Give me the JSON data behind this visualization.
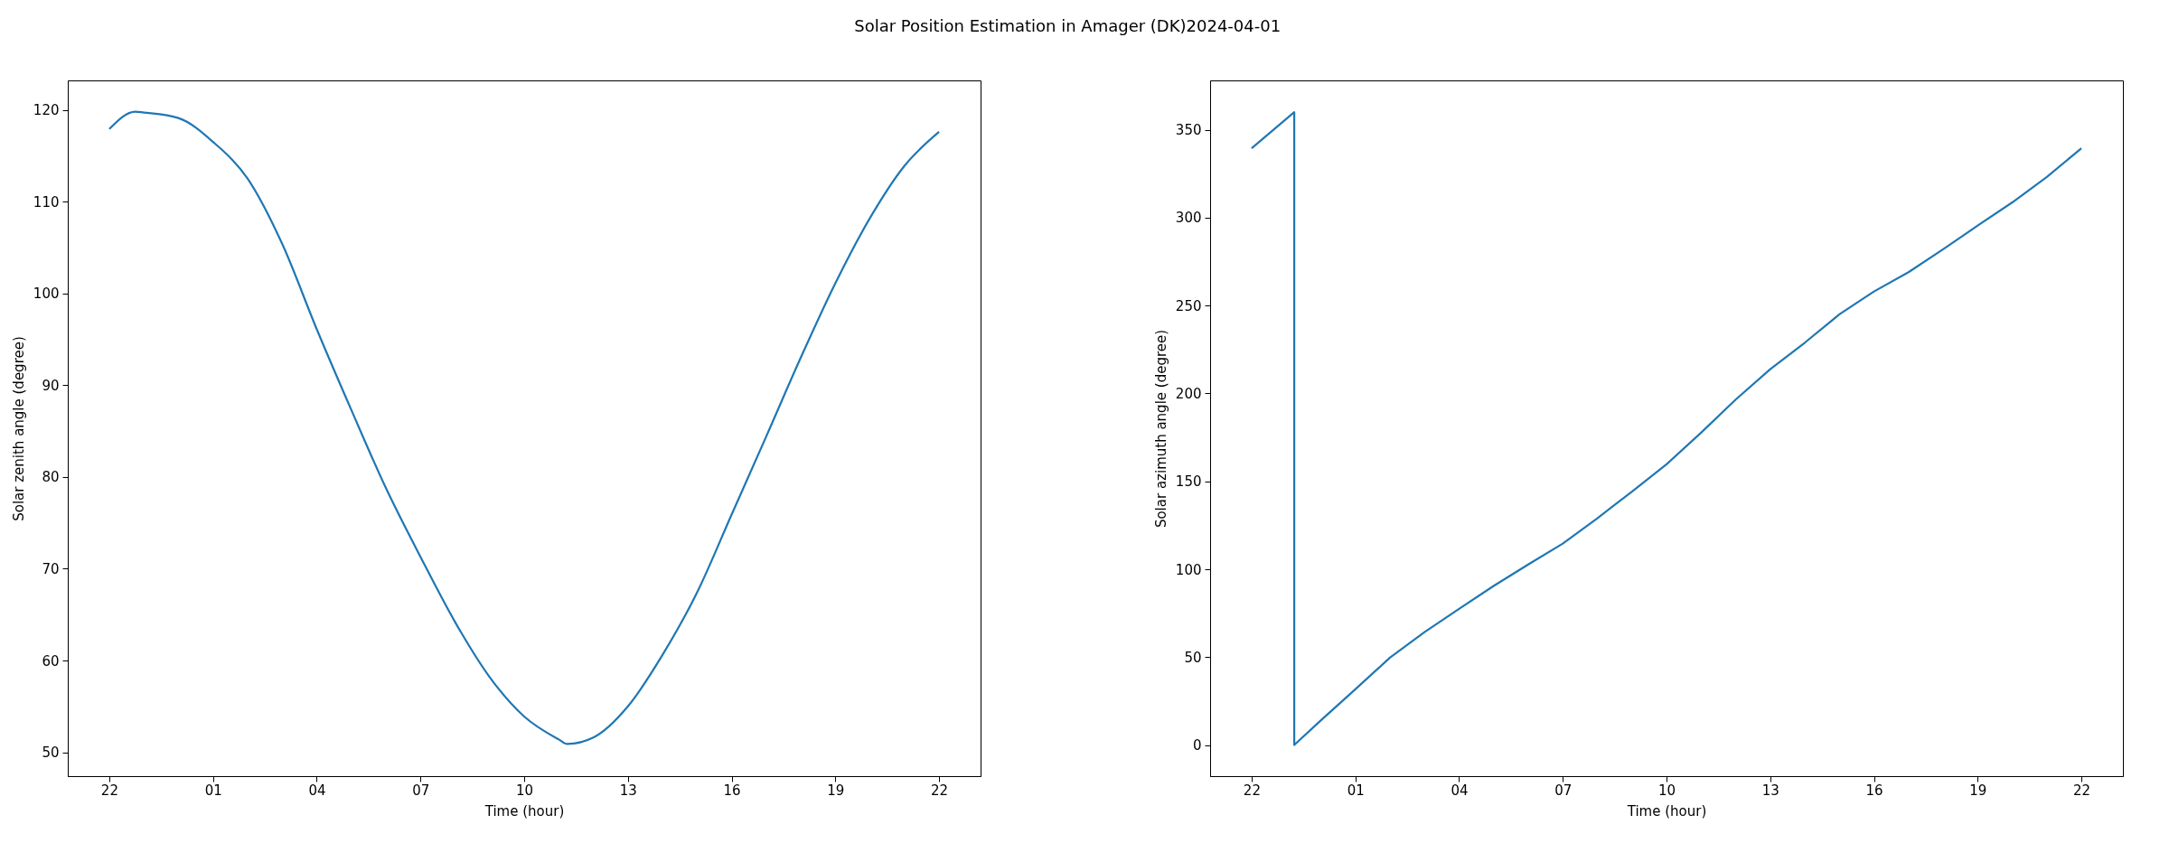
{
  "chart_data": [
    {
      "type": "line",
      "title": "Solar Position Estimation in Amager (DK)2024-04-01",
      "xlabel": "Time (hour)",
      "ylabel": "Solar zenith angle (degree)",
      "x": [
        "2024-03-31T22:00",
        "2024-03-31T22:45",
        "2024-03-31T23:00",
        "2024-04-01T00:00",
        "2024-04-01T01:00",
        "2024-04-01T02:00",
        "2024-04-01T03:00",
        "2024-04-01T04:00",
        "2024-04-01T05:00",
        "2024-04-01T06:00",
        "2024-04-01T07:00",
        "2024-04-01T08:00",
        "2024-04-01T09:00",
        "2024-04-01T10:00",
        "2024-04-01T11:00",
        "2024-04-01T11:15",
        "2024-04-01T12:00",
        "2024-04-01T13:00",
        "2024-04-01T14:00",
        "2024-04-01T15:00",
        "2024-04-01T16:00",
        "2024-04-01T17:00",
        "2024-04-01T18:00",
        "2024-04-01T19:00",
        "2024-04-01T20:00",
        "2024-04-01T21:00",
        "2024-04-01T22:00"
      ],
      "series": [
        {
          "color": "#1f77b4",
          "values": [
            117.9,
            119.8,
            119.7,
            119.1,
            116.5,
            112.5,
            105.4,
            96.1,
            87.3,
            78.8,
            71.3,
            64.2,
            58.2,
            53.9,
            51.4,
            50.9,
            51.6,
            55.0,
            60.6,
            67.4,
            75.9,
            84.4,
            93.0,
            101.1,
            108.2,
            113.9,
            117.6
          ]
        }
      ],
      "xlim": [
        "2024-03-31T20:48",
        "2024-04-01T23:12"
      ],
      "ylim": [
        47.4,
        123.2
      ],
      "xticks": [
        {
          "value": "2024-03-31T22:00",
          "label": "22"
        },
        {
          "value": "2024-04-01T01:00",
          "label": "01"
        },
        {
          "value": "2024-04-01T04:00",
          "label": "04"
        },
        {
          "value": "2024-04-01T07:00",
          "label": "07"
        },
        {
          "value": "2024-04-01T10:00",
          "label": "10"
        },
        {
          "value": "2024-04-01T13:00",
          "label": "13"
        },
        {
          "value": "2024-04-01T16:00",
          "label": "16"
        },
        {
          "value": "2024-04-01T19:00",
          "label": "19"
        },
        {
          "value": "2024-04-01T22:00",
          "label": "22"
        }
      ],
      "yticks": [
        50,
        60,
        70,
        80,
        90,
        100,
        110,
        120
      ]
    },
    {
      "type": "line",
      "xlabel": "Time (hour)",
      "ylabel": "Solar azimuth angle (degree)",
      "x": [
        "2024-03-31T22:00",
        "2024-03-31T23:14",
        "2024-03-31T23:14",
        "2024-04-01T00:00",
        "2024-04-01T01:00",
        "2024-04-01T02:00",
        "2024-04-01T03:00",
        "2024-04-01T04:00",
        "2024-04-01T05:00",
        "2024-04-01T06:00",
        "2024-04-01T07:00",
        "2024-04-01T08:00",
        "2024-04-01T09:00",
        "2024-04-01T10:00",
        "2024-04-01T11:00",
        "2024-04-01T12:00",
        "2024-04-01T13:00",
        "2024-04-01T14:00",
        "2024-04-01T15:00",
        "2024-04-01T16:00",
        "2024-04-01T17:00",
        "2024-04-01T18:00",
        "2024-04-01T19:00",
        "2024-04-01T20:00",
        "2024-04-01T21:00",
        "2024-04-01T22:00"
      ],
      "series": [
        {
          "color": "#1f77b4",
          "values": [
            339.5,
            360,
            0,
            14,
            31.7,
            49.7,
            64.2,
            77.5,
            90.5,
            102.7,
            114.6,
            129,
            144.2,
            159.7,
            177.7,
            196.5,
            213.8,
            228.9,
            245,
            258,
            269,
            282,
            295.5,
            308.7,
            323.2,
            339.5
          ]
        }
      ],
      "xlim": [
        "2024-03-31T20:48",
        "2024-04-01T23:12"
      ],
      "ylim": [
        -17.7,
        378.1
      ],
      "xticks": [
        {
          "value": "2024-03-31T22:00",
          "label": "22"
        },
        {
          "value": "2024-04-01T01:00",
          "label": "01"
        },
        {
          "value": "2024-04-01T04:00",
          "label": "04"
        },
        {
          "value": "2024-04-01T07:00",
          "label": "07"
        },
        {
          "value": "2024-04-01T10:00",
          "label": "10"
        },
        {
          "value": "2024-04-01T13:00",
          "label": "13"
        },
        {
          "value": "2024-04-01T16:00",
          "label": "16"
        },
        {
          "value": "2024-04-01T19:00",
          "label": "19"
        },
        {
          "value": "2024-04-01T22:00",
          "label": "22"
        }
      ],
      "yticks": [
        0,
        50,
        100,
        150,
        200,
        250,
        300,
        350
      ]
    }
  ]
}
